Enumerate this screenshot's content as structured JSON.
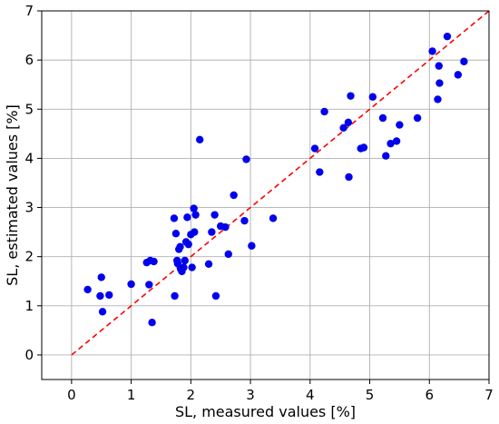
{
  "chart_data": {
    "type": "scatter",
    "title": "",
    "xlabel": "SL, measured values [%]",
    "ylabel": "SL, estimated values [%]",
    "xlim": [
      -0.5,
      7
    ],
    "ylim": [
      -0.5,
      7
    ],
    "xticks": [
      0,
      1,
      2,
      3,
      4,
      5,
      6,
      7
    ],
    "yticks": [
      0,
      1,
      2,
      3,
      4,
      5,
      6,
      7
    ],
    "grid": true,
    "legend": "none",
    "reference_line": {
      "from": [
        0,
        0
      ],
      "to": [
        7,
        7
      ],
      "style": "dashed",
      "color": "#ff0000"
    },
    "point_color": "#0000ee",
    "series": [
      {
        "points": [
          [
            0.27,
            1.33
          ],
          [
            0.48,
            1.2
          ],
          [
            0.5,
            1.58
          ],
          [
            0.52,
            0.88
          ],
          [
            0.63,
            1.22
          ],
          [
            1.0,
            1.44
          ],
          [
            1.26,
            1.88
          ],
          [
            1.3,
            1.43
          ],
          [
            1.32,
            1.92
          ],
          [
            1.35,
            0.66
          ],
          [
            1.38,
            1.9
          ],
          [
            1.72,
            2.78
          ],
          [
            1.73,
            1.2
          ],
          [
            1.75,
            2.47
          ],
          [
            1.77,
            1.92
          ],
          [
            1.78,
            1.86
          ],
          [
            1.8,
            2.15
          ],
          [
            1.82,
            2.2
          ],
          [
            1.83,
            1.75
          ],
          [
            1.85,
            1.7
          ],
          [
            1.88,
            1.78
          ],
          [
            1.9,
            1.92
          ],
          [
            1.92,
            2.3
          ],
          [
            1.94,
            2.8
          ],
          [
            1.96,
            2.25
          ],
          [
            2.0,
            2.45
          ],
          [
            2.02,
            1.78
          ],
          [
            2.05,
            2.98
          ],
          [
            2.06,
            2.5
          ],
          [
            2.08,
            2.85
          ],
          [
            2.15,
            4.38
          ],
          [
            2.3,
            1.85
          ],
          [
            2.35,
            2.5
          ],
          [
            2.4,
            2.85
          ],
          [
            2.42,
            1.2
          ],
          [
            2.5,
            2.62
          ],
          [
            2.58,
            2.6
          ],
          [
            2.63,
            2.05
          ],
          [
            2.72,
            3.25
          ],
          [
            2.9,
            2.73
          ],
          [
            2.93,
            3.98
          ],
          [
            3.02,
            2.22
          ],
          [
            3.38,
            2.78
          ],
          [
            4.08,
            4.2
          ],
          [
            4.16,
            3.72
          ],
          [
            4.24,
            4.95
          ],
          [
            4.56,
            4.62
          ],
          [
            4.64,
            4.73
          ],
          [
            4.65,
            3.62
          ],
          [
            4.68,
            5.27
          ],
          [
            4.85,
            4.2
          ],
          [
            4.9,
            4.22
          ],
          [
            5.05,
            5.25
          ],
          [
            5.22,
            4.82
          ],
          [
            5.27,
            4.05
          ],
          [
            5.35,
            4.3
          ],
          [
            5.45,
            4.35
          ],
          [
            5.5,
            4.68
          ],
          [
            5.8,
            4.82
          ],
          [
            6.05,
            6.18
          ],
          [
            6.14,
            5.2
          ],
          [
            6.16,
            5.88
          ],
          [
            6.17,
            5.53
          ],
          [
            6.3,
            6.48
          ],
          [
            6.48,
            5.7
          ],
          [
            6.58,
            5.97
          ]
        ]
      }
    ]
  }
}
